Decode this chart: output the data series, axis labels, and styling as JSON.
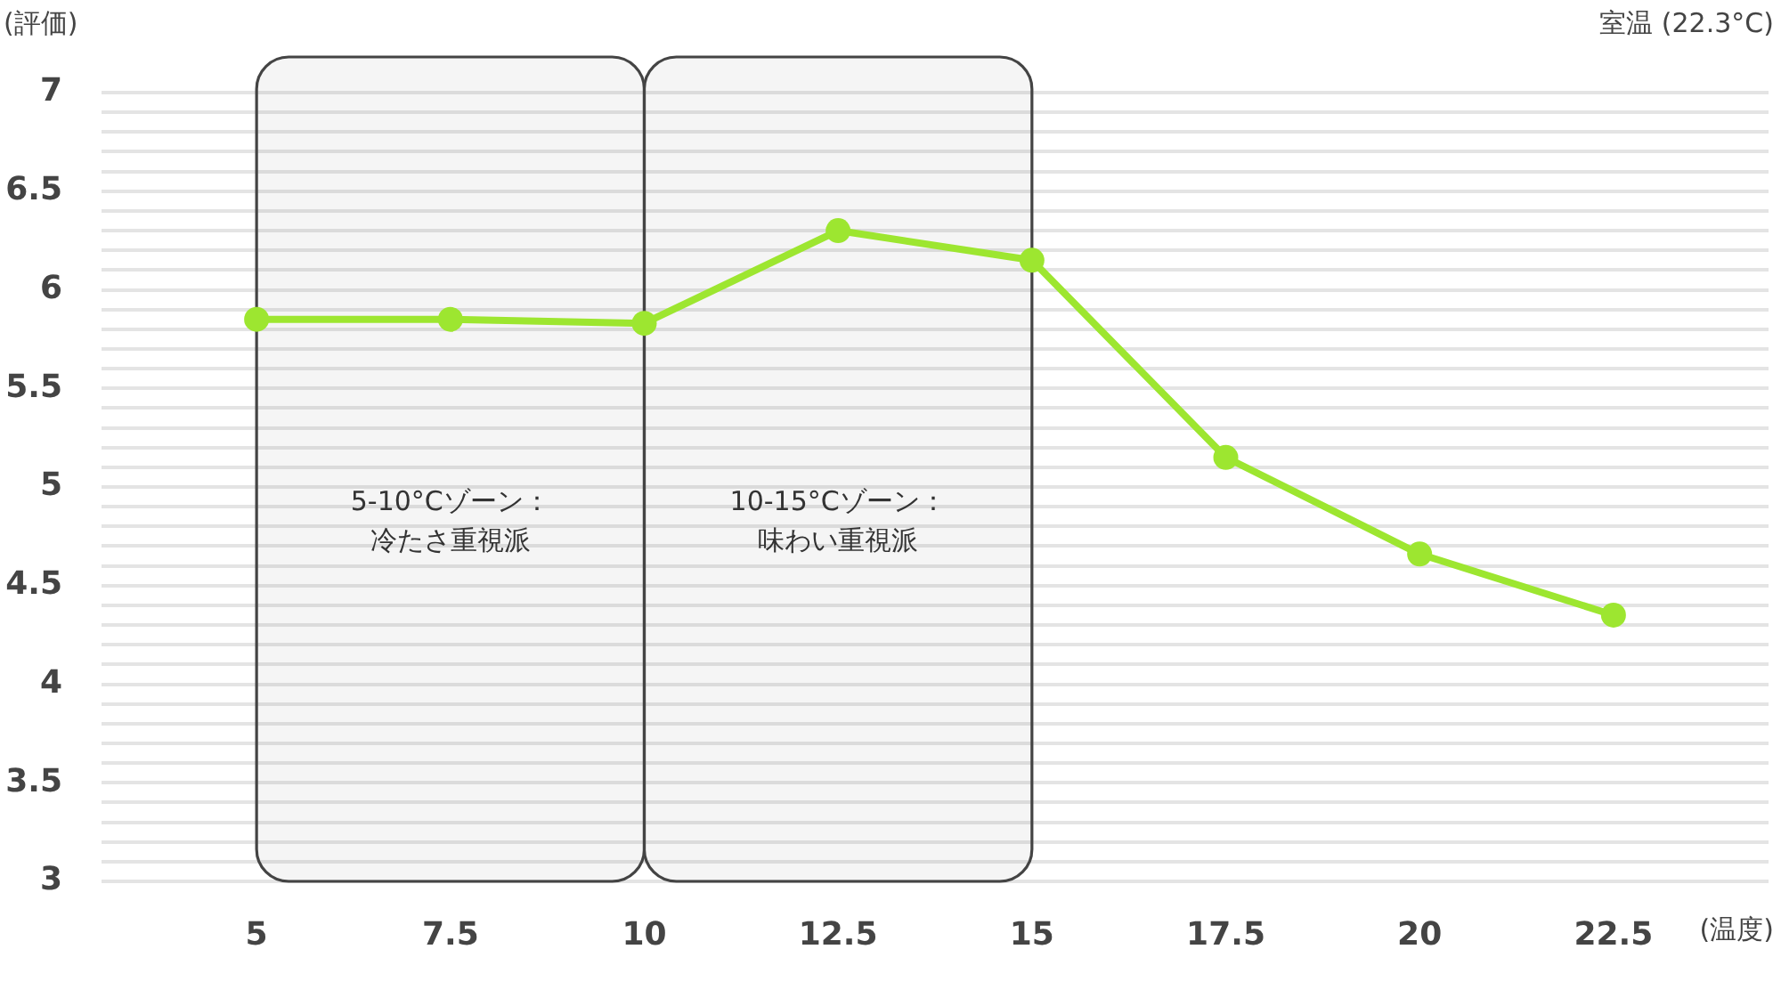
{
  "chart_data": {
    "type": "line",
    "ylabel": "(評価)",
    "xlabel": "(温度)",
    "x": [
      5,
      7.5,
      10,
      12.5,
      15,
      17.5,
      20,
      22.5
    ],
    "series": [
      {
        "color": "#9de630",
        "values": [
          5.85,
          5.85,
          5.83,
          6.3,
          6.15,
          5.15,
          4.66,
          4.35
        ]
      }
    ],
    "xlim": [
      3,
      24.5
    ],
    "xticks": [
      5,
      7.5,
      10,
      12.5,
      15,
      17.5,
      20,
      22.5
    ],
    "ylim": [
      3,
      7
    ],
    "yticks": [
      3,
      {
        "value": 3.1,
        "label": null
      },
      {
        "value": 3.2,
        "label": null
      },
      {
        "value": 3.3,
        "label": null
      },
      {
        "value": 3.4,
        "label": null
      },
      3.5,
      {
        "value": 3.6,
        "label": null
      },
      {
        "value": 3.7,
        "label": null
      },
      {
        "value": 3.8,
        "label": null
      },
      {
        "value": 3.9,
        "label": null
      },
      4,
      {
        "value": 4.1,
        "label": null
      },
      {
        "value": 4.2,
        "label": null
      },
      {
        "value": 4.3,
        "label": null
      },
      {
        "value": 4.4,
        "label": null
      },
      4.5,
      {
        "value": 4.6,
        "label": null
      },
      {
        "value": 4.7,
        "label": null
      },
      {
        "value": 4.8,
        "label": null
      },
      {
        "value": 4.9,
        "label": null
      },
      5,
      {
        "value": 5.1,
        "label": null
      },
      {
        "value": 5.2,
        "label": null
      },
      {
        "value": 5.3,
        "label": null
      },
      {
        "value": 5.4,
        "label": null
      },
      5.5,
      {
        "value": 5.6,
        "label": null
      },
      {
        "value": 5.7,
        "label": null
      },
      {
        "value": 5.8,
        "label": null
      },
      {
        "value": 5.9,
        "label": null
      },
      6,
      {
        "value": 6.1,
        "label": null
      },
      {
        "value": 6.2,
        "label": null
      },
      {
        "value": 6.3,
        "label": null
      },
      {
        "value": 6.4,
        "label": null
      },
      6.5,
      {
        "value": 6.6,
        "label": null
      },
      {
        "value": 6.7,
        "label": null
      },
      {
        "value": 6.8,
        "label": null
      },
      {
        "value": 6.9,
        "label": null
      },
      7
    ],
    "bands": [
      {
        "axis": "x",
        "from": 5,
        "to": 10,
        "label": "5-10°Cゾーン：冷たさ重視派",
        "color": "#444444"
      },
      {
        "axis": "x",
        "from": 10,
        "to": 15,
        "label": "10-15°Cゾーン：味わい重視派",
        "color": "#444444"
      }
    ],
    "annotations": [
      "室温 (22.3°C)"
    ],
    "grid": "y",
    "marker": "circle",
    "line_style": "solid",
    "legend": false
  }
}
